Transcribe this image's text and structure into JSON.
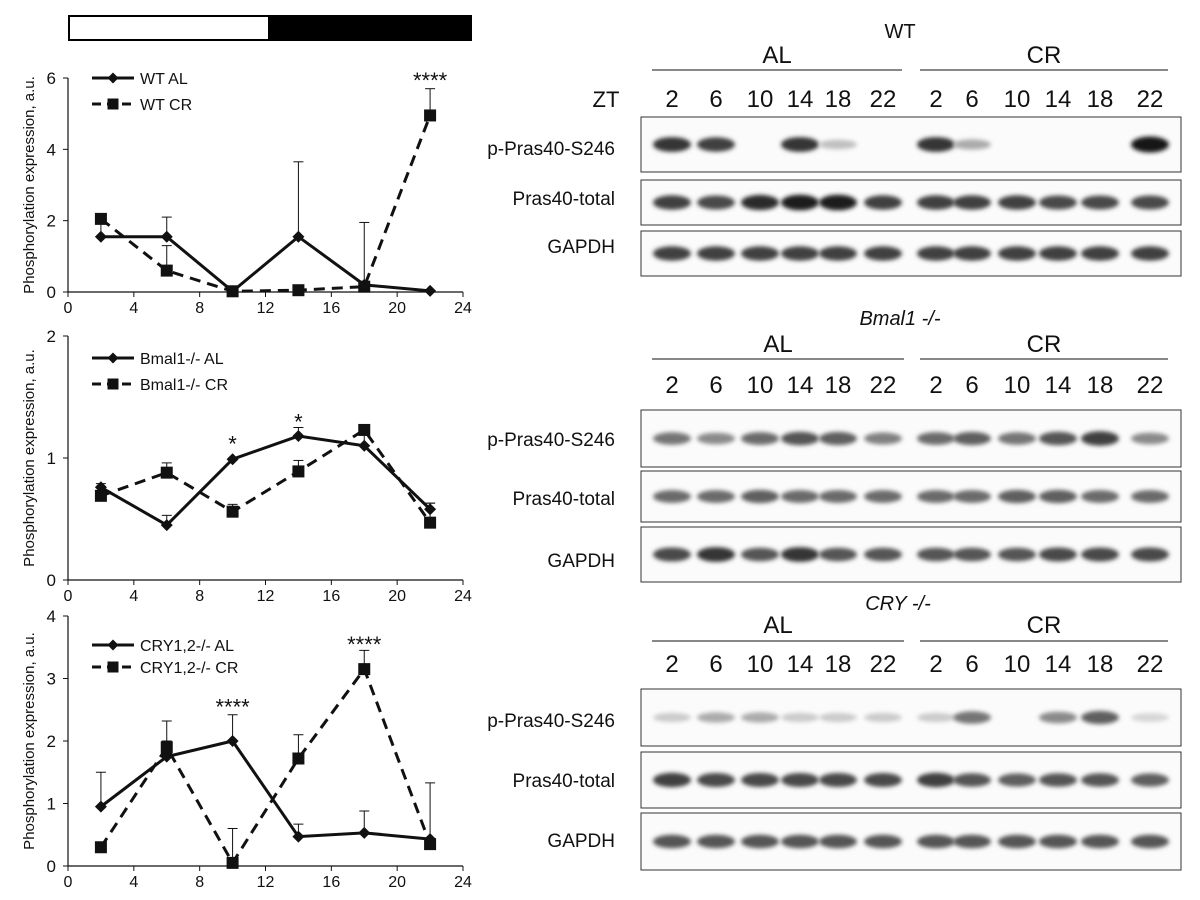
{
  "light_dark_bar": {
    "light_color": "#ffffff",
    "dark_color": "#000000"
  },
  "chart_data": [
    {
      "type": "line",
      "ylabel": "Phosphorylation expression, a.u.",
      "xlim": [
        0,
        24
      ],
      "ylim": [
        0,
        6
      ],
      "xticks": [
        "0",
        "4",
        "8",
        "12",
        "16",
        "20",
        "24"
      ],
      "yticks": [
        "0",
        "2",
        "4",
        "6"
      ],
      "legend_position": "top-left",
      "x": [
        2,
        6,
        10,
        14,
        18,
        22
      ],
      "series": [
        {
          "name": "WT AL",
          "style": "solid",
          "marker": "diamond",
          "values": [
            1.55,
            1.55,
            0.02,
            1.55,
            0.2,
            0.03
          ],
          "errors": [
            0.45,
            0.55,
            0,
            2.1,
            0.05,
            0
          ]
        },
        {
          "name": "WT CR",
          "style": "dashed",
          "marker": "square",
          "values": [
            2.05,
            0.6,
            0.02,
            0.05,
            0.15,
            4.95
          ],
          "errors": [
            0,
            0.7,
            0,
            0,
            1.8,
            0.75
          ]
        }
      ],
      "annotations": [
        {
          "x": 22,
          "y": 5.95,
          "text": "****"
        }
      ]
    },
    {
      "type": "line",
      "ylabel": "Phosphorylation expression, a.u.",
      "xlim": [
        0,
        24
      ],
      "ylim": [
        0,
        2
      ],
      "xticks": [
        "0",
        "4",
        "8",
        "12",
        "16",
        "20",
        "24"
      ],
      "yticks": [
        "0",
        "1",
        "2"
      ],
      "legend_position": "top-left",
      "x": [
        2,
        6,
        10,
        14,
        18,
        22
      ],
      "series": [
        {
          "name": "Bmal1-/- AL",
          "style": "solid",
          "marker": "diamond",
          "values": [
            0.76,
            0.45,
            0.99,
            1.18,
            1.1,
            0.58
          ],
          "errors": [
            0,
            0.08,
            0,
            0.07,
            0.15,
            0.05
          ]
        },
        {
          "name": "Bmal1-/- CR",
          "style": "dashed",
          "marker": "square",
          "values": [
            0.69,
            0.88,
            0.56,
            0.89,
            1.23,
            0.47
          ],
          "errors": [
            0.1,
            0.08,
            0.06,
            0.09,
            0,
            0.16
          ]
        }
      ],
      "annotations": [
        {
          "x": 10,
          "y": 1.12,
          "text": "*"
        },
        {
          "x": 14,
          "y": 1.3,
          "text": "*"
        }
      ]
    },
    {
      "type": "line",
      "ylabel": "Phosphorylation expression, a.u.",
      "xlim": [
        0,
        24
      ],
      "ylim": [
        0,
        4
      ],
      "xticks": [
        "0",
        "4",
        "8",
        "12",
        "16",
        "20",
        "24"
      ],
      "yticks": [
        "0",
        "1",
        "2",
        "3",
        "4"
      ],
      "legend_position": "top-left",
      "x": [
        2,
        6,
        10,
        14,
        18,
        22
      ],
      "series": [
        {
          "name": "CRY1,2-/- AL",
          "style": "solid",
          "marker": "diamond",
          "values": [
            0.95,
            1.75,
            2.0,
            0.47,
            0.53,
            0.43
          ],
          "errors": [
            0.55,
            0.25,
            0.42,
            0.2,
            0.35,
            0.9
          ]
        },
        {
          "name": "CRY1,2-/- CR",
          "style": "dashed",
          "marker": "square",
          "values": [
            0.3,
            1.9,
            0.05,
            1.72,
            3.15,
            0.35
          ],
          "errors": [
            0,
            0.42,
            0.55,
            0.38,
            0.3,
            0
          ]
        }
      ],
      "annotations": [
        {
          "x": 10,
          "y": 2.55,
          "text": "****"
        },
        {
          "x": 18,
          "y": 3.55,
          "text": "****"
        }
      ]
    }
  ],
  "blots": [
    {
      "title": "WT",
      "title_italic": false,
      "group_left": "AL",
      "group_right": "CR",
      "zt_label": "ZT",
      "lanes_left": [
        "2",
        "6",
        "10",
        "14",
        "18",
        "22"
      ],
      "lanes_right": [
        "2",
        "6",
        "10",
        "14",
        "18",
        "22"
      ],
      "rows": [
        {
          "label": "p-Pras40-S246",
          "intensities": [
            0.85,
            0.8,
            0,
            0.85,
            0.2,
            0,
            0.85,
            0.3,
            0,
            0,
            0,
            1.0
          ]
        },
        {
          "label": "Pras40-total",
          "intensities": [
            0.8,
            0.75,
            0.9,
            0.95,
            0.95,
            0.8,
            0.8,
            0.8,
            0.8,
            0.75,
            0.75,
            0.75
          ]
        },
        {
          "label": "GAPDH",
          "intensities": [
            0.8,
            0.8,
            0.8,
            0.8,
            0.8,
            0.8,
            0.8,
            0.8,
            0.8,
            0.8,
            0.8,
            0.8
          ]
        }
      ]
    },
    {
      "title": "Bmal1 -/-",
      "title_italic": true,
      "group_left": "AL",
      "group_right": "CR",
      "zt_label": "",
      "lanes_left": [
        "2",
        "6",
        "10",
        "14",
        "18",
        "22"
      ],
      "lanes_right": [
        "2",
        "6",
        "10",
        "14",
        "18",
        "22"
      ],
      "rows": [
        {
          "label": "p-Pras40-S246",
          "intensities": [
            0.55,
            0.45,
            0.6,
            0.7,
            0.65,
            0.5,
            0.6,
            0.65,
            0.55,
            0.7,
            0.8,
            0.45
          ]
        },
        {
          "label": "Pras40-total",
          "intensities": [
            0.6,
            0.6,
            0.65,
            0.6,
            0.6,
            0.6,
            0.6,
            0.6,
            0.65,
            0.65,
            0.6,
            0.6
          ]
        },
        {
          "label": "GAPDH",
          "intensities": [
            0.75,
            0.85,
            0.7,
            0.85,
            0.7,
            0.7,
            0.7,
            0.7,
            0.7,
            0.75,
            0.75,
            0.75
          ]
        }
      ]
    },
    {
      "title": "CRY -/-",
      "title_italic": true,
      "group_left": "AL",
      "group_right": "CR",
      "zt_label": "",
      "lanes_left": [
        "2",
        "6",
        "10",
        "14",
        "18",
        "22"
      ],
      "lanes_right": [
        "2",
        "6",
        "10",
        "14",
        "18",
        "22"
      ],
      "rows": [
        {
          "label": "p-Pras40-S246",
          "intensities": [
            0.15,
            0.3,
            0.3,
            0.15,
            0.15,
            0.15,
            0.15,
            0.55,
            0,
            0.45,
            0.65,
            0.1
          ]
        },
        {
          "label": "Pras40-total",
          "intensities": [
            0.8,
            0.75,
            0.75,
            0.75,
            0.75,
            0.75,
            0.8,
            0.7,
            0.65,
            0.7,
            0.7,
            0.65
          ]
        },
        {
          "label": "GAPDH",
          "intensities": [
            0.7,
            0.7,
            0.7,
            0.7,
            0.7,
            0.7,
            0.7,
            0.7,
            0.7,
            0.7,
            0.7,
            0.7
          ]
        }
      ]
    }
  ]
}
